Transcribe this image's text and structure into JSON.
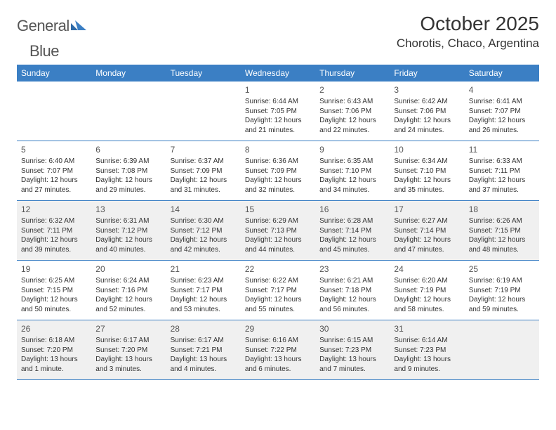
{
  "logo": {
    "word1": "General",
    "word2": "Blue"
  },
  "title": "October 2025",
  "location": "Chorotis, Chaco, Argentina",
  "colors": {
    "header_bg": "#3b7fc4",
    "header_text": "#ffffff",
    "shade_bg": "#f0f0f0",
    "rule": "#3b7fc4",
    "text": "#333333",
    "page_bg": "#ffffff"
  },
  "dows": [
    "Sunday",
    "Monday",
    "Tuesday",
    "Wednesday",
    "Thursday",
    "Friday",
    "Saturday"
  ],
  "weeks": [
    {
      "shaded": false,
      "days": [
        {
          "empty": true
        },
        {
          "empty": true
        },
        {
          "empty": true
        },
        {
          "n": "1",
          "sunrise": "Sunrise: 6:44 AM",
          "sunset": "Sunset: 7:05 PM",
          "daylight": "Daylight: 12 hours and 21 minutes."
        },
        {
          "n": "2",
          "sunrise": "Sunrise: 6:43 AM",
          "sunset": "Sunset: 7:06 PM",
          "daylight": "Daylight: 12 hours and 22 minutes."
        },
        {
          "n": "3",
          "sunrise": "Sunrise: 6:42 AM",
          "sunset": "Sunset: 7:06 PM",
          "daylight": "Daylight: 12 hours and 24 minutes."
        },
        {
          "n": "4",
          "sunrise": "Sunrise: 6:41 AM",
          "sunset": "Sunset: 7:07 PM",
          "daylight": "Daylight: 12 hours and 26 minutes."
        }
      ]
    },
    {
      "shaded": false,
      "days": [
        {
          "n": "5",
          "sunrise": "Sunrise: 6:40 AM",
          "sunset": "Sunset: 7:07 PM",
          "daylight": "Daylight: 12 hours and 27 minutes."
        },
        {
          "n": "6",
          "sunrise": "Sunrise: 6:39 AM",
          "sunset": "Sunset: 7:08 PM",
          "daylight": "Daylight: 12 hours and 29 minutes."
        },
        {
          "n": "7",
          "sunrise": "Sunrise: 6:37 AM",
          "sunset": "Sunset: 7:09 PM",
          "daylight": "Daylight: 12 hours and 31 minutes."
        },
        {
          "n": "8",
          "sunrise": "Sunrise: 6:36 AM",
          "sunset": "Sunset: 7:09 PM",
          "daylight": "Daylight: 12 hours and 32 minutes."
        },
        {
          "n": "9",
          "sunrise": "Sunrise: 6:35 AM",
          "sunset": "Sunset: 7:10 PM",
          "daylight": "Daylight: 12 hours and 34 minutes."
        },
        {
          "n": "10",
          "sunrise": "Sunrise: 6:34 AM",
          "sunset": "Sunset: 7:10 PM",
          "daylight": "Daylight: 12 hours and 35 minutes."
        },
        {
          "n": "11",
          "sunrise": "Sunrise: 6:33 AM",
          "sunset": "Sunset: 7:11 PM",
          "daylight": "Daylight: 12 hours and 37 minutes."
        }
      ]
    },
    {
      "shaded": true,
      "days": [
        {
          "n": "12",
          "sunrise": "Sunrise: 6:32 AM",
          "sunset": "Sunset: 7:11 PM",
          "daylight": "Daylight: 12 hours and 39 minutes."
        },
        {
          "n": "13",
          "sunrise": "Sunrise: 6:31 AM",
          "sunset": "Sunset: 7:12 PM",
          "daylight": "Daylight: 12 hours and 40 minutes."
        },
        {
          "n": "14",
          "sunrise": "Sunrise: 6:30 AM",
          "sunset": "Sunset: 7:12 PM",
          "daylight": "Daylight: 12 hours and 42 minutes."
        },
        {
          "n": "15",
          "sunrise": "Sunrise: 6:29 AM",
          "sunset": "Sunset: 7:13 PM",
          "daylight": "Daylight: 12 hours and 44 minutes."
        },
        {
          "n": "16",
          "sunrise": "Sunrise: 6:28 AM",
          "sunset": "Sunset: 7:14 PM",
          "daylight": "Daylight: 12 hours and 45 minutes."
        },
        {
          "n": "17",
          "sunrise": "Sunrise: 6:27 AM",
          "sunset": "Sunset: 7:14 PM",
          "daylight": "Daylight: 12 hours and 47 minutes."
        },
        {
          "n": "18",
          "sunrise": "Sunrise: 6:26 AM",
          "sunset": "Sunset: 7:15 PM",
          "daylight": "Daylight: 12 hours and 48 minutes."
        }
      ]
    },
    {
      "shaded": false,
      "days": [
        {
          "n": "19",
          "sunrise": "Sunrise: 6:25 AM",
          "sunset": "Sunset: 7:15 PM",
          "daylight": "Daylight: 12 hours and 50 minutes."
        },
        {
          "n": "20",
          "sunrise": "Sunrise: 6:24 AM",
          "sunset": "Sunset: 7:16 PM",
          "daylight": "Daylight: 12 hours and 52 minutes."
        },
        {
          "n": "21",
          "sunrise": "Sunrise: 6:23 AM",
          "sunset": "Sunset: 7:17 PM",
          "daylight": "Daylight: 12 hours and 53 minutes."
        },
        {
          "n": "22",
          "sunrise": "Sunrise: 6:22 AM",
          "sunset": "Sunset: 7:17 PM",
          "daylight": "Daylight: 12 hours and 55 minutes."
        },
        {
          "n": "23",
          "sunrise": "Sunrise: 6:21 AM",
          "sunset": "Sunset: 7:18 PM",
          "daylight": "Daylight: 12 hours and 56 minutes."
        },
        {
          "n": "24",
          "sunrise": "Sunrise: 6:20 AM",
          "sunset": "Sunset: 7:19 PM",
          "daylight": "Daylight: 12 hours and 58 minutes."
        },
        {
          "n": "25",
          "sunrise": "Sunrise: 6:19 AM",
          "sunset": "Sunset: 7:19 PM",
          "daylight": "Daylight: 12 hours and 59 minutes."
        }
      ]
    },
    {
      "shaded": true,
      "days": [
        {
          "n": "26",
          "sunrise": "Sunrise: 6:18 AM",
          "sunset": "Sunset: 7:20 PM",
          "daylight": "Daylight: 13 hours and 1 minute."
        },
        {
          "n": "27",
          "sunrise": "Sunrise: 6:17 AM",
          "sunset": "Sunset: 7:20 PM",
          "daylight": "Daylight: 13 hours and 3 minutes."
        },
        {
          "n": "28",
          "sunrise": "Sunrise: 6:17 AM",
          "sunset": "Sunset: 7:21 PM",
          "daylight": "Daylight: 13 hours and 4 minutes."
        },
        {
          "n": "29",
          "sunrise": "Sunrise: 6:16 AM",
          "sunset": "Sunset: 7:22 PM",
          "daylight": "Daylight: 13 hours and 6 minutes."
        },
        {
          "n": "30",
          "sunrise": "Sunrise: 6:15 AM",
          "sunset": "Sunset: 7:23 PM",
          "daylight": "Daylight: 13 hours and 7 minutes."
        },
        {
          "n": "31",
          "sunrise": "Sunrise: 6:14 AM",
          "sunset": "Sunset: 7:23 PM",
          "daylight": "Daylight: 13 hours and 9 minutes."
        },
        {
          "empty": true
        }
      ]
    }
  ]
}
